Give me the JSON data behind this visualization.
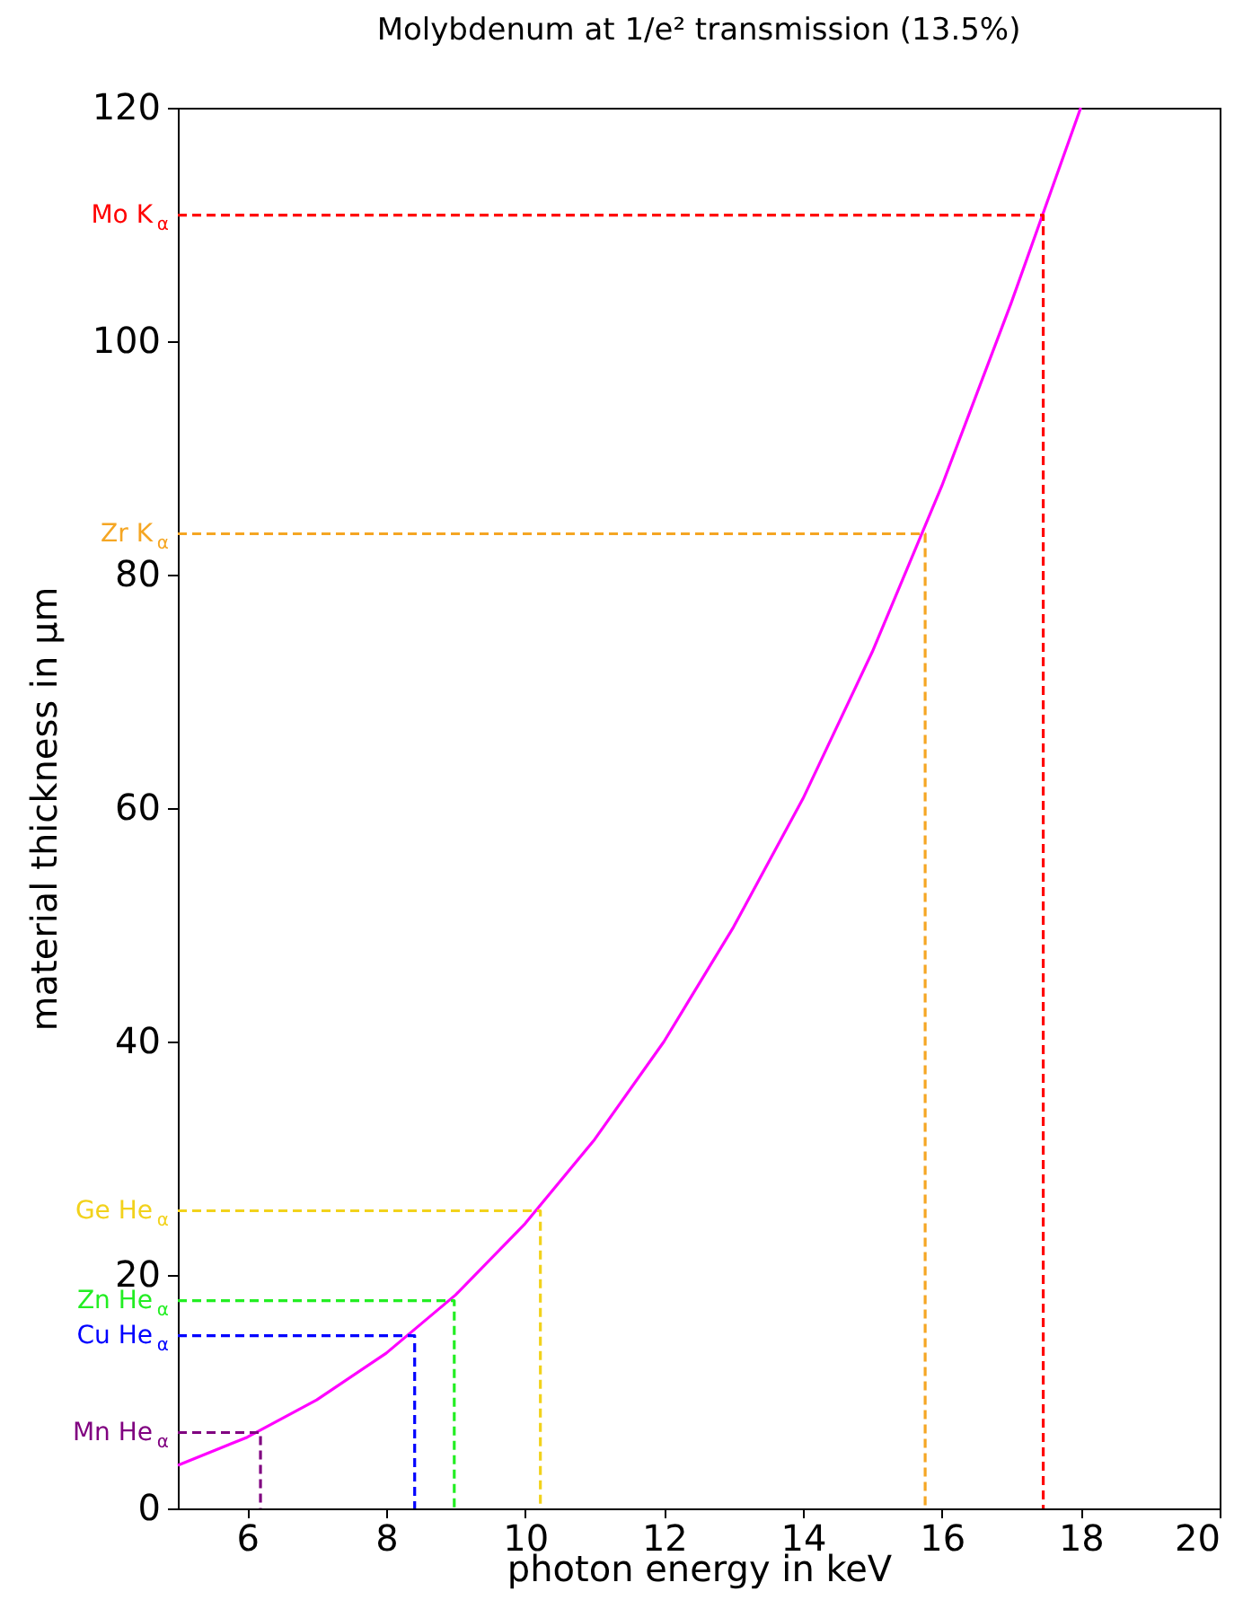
{
  "chart_data": {
    "type": "line",
    "title": "Molybdenum at 1/e² transmission (13.5%)",
    "xlabel": "photon energy in keV",
    "ylabel": "material thickness in µm",
    "xlim": [
      5,
      20
    ],
    "xticks": [
      6,
      8,
      10,
      12,
      14,
      16,
      18,
      20
    ],
    "ylim": [
      0,
      120
    ],
    "yticks": [
      0,
      20,
      40,
      60,
      80,
      100,
      120
    ],
    "grid": false,
    "series": [
      {
        "color": "#ff00ff",
        "line_style": "solid",
        "x": [
          5,
          6,
          7,
          8,
          9,
          10,
          11,
          12,
          13,
          14,
          15,
          16,
          17,
          18
        ],
        "values": [
          3.7,
          6.1,
          9.3,
          13.3,
          18.3,
          24.4,
          31.6,
          40,
          49.8,
          60.8,
          73.4,
          87.6,
          103.3,
          120
        ]
      },
      {
        "name": "Mo K$_{α}$",
        "color": "#ff0000",
        "line_style": "dashed",
        "x": [
          5,
          17.46,
          17.46
        ],
        "values": [
          110.8,
          110.8,
          0
        ]
      },
      {
        "name": "Zr K$_{α}$",
        "color": "#f5a623",
        "line_style": "dashed",
        "x": [
          5,
          15.76,
          15.76
        ],
        "values": [
          83.5,
          83.5,
          0
        ]
      },
      {
        "name": "Ge He$_{α}$",
        "color": "#f2d21b",
        "line_style": "dashed",
        "x": [
          5,
          10.22,
          10.22
        ],
        "values": [
          25.5,
          25.5,
          0
        ]
      },
      {
        "name": "Zn He$_{α}$",
        "color": "#22ee22",
        "line_style": "dashed",
        "x": [
          5,
          8.98,
          8.98
        ],
        "values": [
          17.8,
          17.8,
          0
        ]
      },
      {
        "name": "Cu He$_{α}$",
        "color": "#0000ff",
        "line_style": "dashed",
        "x": [
          5,
          8.41,
          8.41
        ],
        "values": [
          14.8,
          14.8,
          0
        ]
      },
      {
        "name": "Mn He$_{α}$",
        "color": "#800080",
        "line_style": "dashed",
        "x": [
          5,
          6.19,
          6.19
        ],
        "values": [
          6.5,
          6.5,
          0
        ]
      }
    ]
  }
}
